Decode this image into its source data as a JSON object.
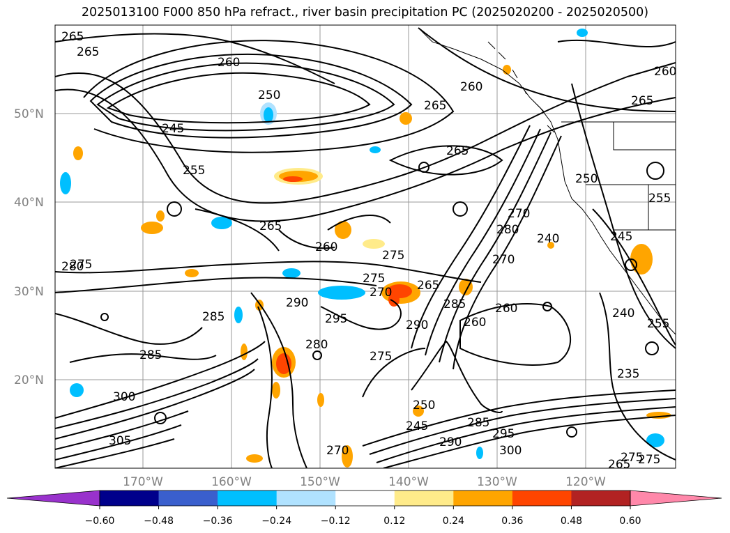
{
  "title": "2025013100 F000 850 hPa refract., river basin precipitation PC (2025020200 - 2025020500)",
  "latitude_labels": [
    "50°N",
    "40°N",
    "30°N",
    "20°N"
  ],
  "longitude_labels": [
    "170°W",
    "160°W",
    "150°W",
    "140°W",
    "130°W",
    "120°W"
  ],
  "colorbar": {
    "ticks": [
      "−0.60",
      "−0.48",
      "−0.36",
      "−0.24",
      "−0.12",
      "0.12",
      "0.24",
      "0.36",
      "0.48",
      "0.60"
    ],
    "colors": [
      "#9932cc",
      "#00008b",
      "#3a5fcd",
      "#00bfff",
      "#b0e2ff",
      "#ffffff",
      "#ffeb8a",
      "#ffa500",
      "#ff4500",
      "#b22222",
      "#ff88aa"
    ],
    "extend": "both"
  },
  "contour_labels": [
    "265",
    "265",
    "260",
    "250",
    "245",
    "255",
    "265",
    "260",
    "265",
    "265",
    "260",
    "260",
    "265",
    "270",
    "280",
    "240",
    "250",
    "245",
    "255",
    "280",
    "275",
    "275",
    "275",
    "270",
    "265",
    "290",
    "295",
    "290",
    "260",
    "285",
    "270",
    "285",
    "285",
    "280",
    "275",
    "260",
    "250",
    "245",
    "285",
    "240",
    "255",
    "295",
    "290",
    "300",
    "270",
    "275",
    "235",
    "300",
    "305",
    "265",
    "275"
  ],
  "precip_regions": [
    {
      "kind": "positive",
      "label": "170°W 42°N"
    },
    {
      "kind": "positive",
      "label": "150°W 21°N"
    },
    {
      "kind": "positive",
      "label": "140°W 30°N"
    },
    {
      "kind": "negative",
      "label": "178°W 43°N"
    },
    {
      "kind": "negative",
      "label": "148°W 30°N"
    }
  ]
}
